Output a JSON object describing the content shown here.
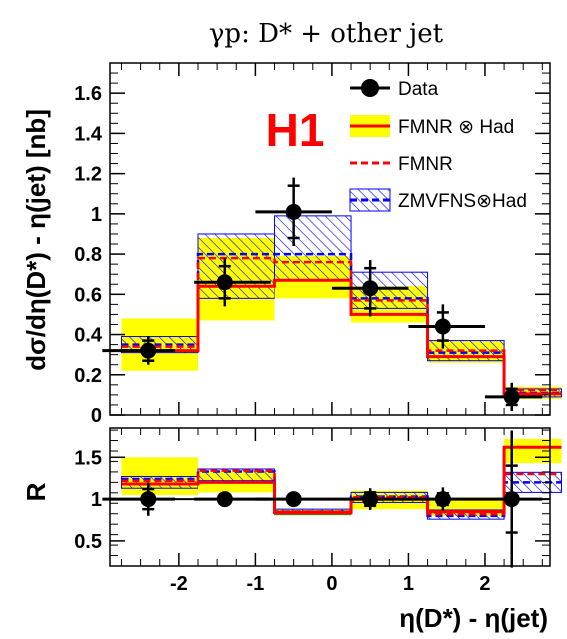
{
  "chart_data": {
    "type": "histogram",
    "title": "γp:  D* + other jet",
    "logo": "H1",
    "colors": {
      "data": "#000000",
      "band_fill": "#ffff00",
      "fmnr_had": "#ff0000",
      "fmnr": "#ff0000",
      "zmvfns": "#0000ff"
    },
    "bin_edges": [
      -2.75,
      -1.75,
      -0.75,
      0.25,
      1.25,
      2.25,
      3.0
    ],
    "xlabel": "η(D*) - η(jet)",
    "xlim": [
      -2.9,
      2.85
    ],
    "x_ticks": [
      -2,
      -1,
      0,
      1,
      2
    ],
    "x_tick_labels": [
      "-2",
      "-1",
      "0",
      "1",
      "2"
    ],
    "legend": {
      "placement": "top-right",
      "entries": [
        {
          "label": "Data",
          "style": "marker"
        },
        {
          "label": "FMNR ⊗ Had",
          "style": "band-line"
        },
        {
          "label": "FMNR",
          "style": "dashed-red"
        },
        {
          "label": "ZMVFNS⊗Had",
          "style": "hatched-dashed-blue"
        }
      ]
    },
    "top": {
      "ylabel": "dσ/dη(D*) - η(jet) [nb]",
      "ylim": [
        0,
        1.75
      ],
      "y_ticks": [
        0,
        0.2,
        0.4,
        0.6,
        0.8,
        1,
        1.2,
        1.4,
        1.6
      ],
      "y_tick_labels": [
        "0",
        "0.2",
        "0.4",
        "0.6",
        "0.8",
        "1",
        "1.2",
        "1.4",
        "1.6"
      ],
      "data": {
        "x": [
          -2.4,
          -1.4,
          -0.5,
          0.5,
          1.45,
          2.35
        ],
        "y": [
          0.32,
          0.66,
          1.01,
          0.63,
          0.44,
          0.09
        ],
        "xerr": [
          [
            0.6,
            0.35
          ],
          [
            0.4,
            0.6
          ],
          [
            0.5,
            0.5
          ],
          [
            0.5,
            0.5
          ],
          [
            0.45,
            0.55
          ],
          [
            0.35,
            0.4
          ]
        ],
        "yerr_inner": [
          0.05,
          0.08,
          0.13,
          0.1,
          0.07,
          0.04
        ],
        "yerr_outer": [
          0.07,
          0.12,
          0.17,
          0.14,
          0.11,
          0.07
        ]
      },
      "fmnr_had_band": {
        "low": [
          0.22,
          0.47,
          0.58,
          0.46,
          0.26,
          0.08
        ],
        "high": [
          0.48,
          0.88,
          0.79,
          0.64,
          0.37,
          0.14
        ]
      },
      "fmnr_had": [
        0.32,
        0.64,
        0.67,
        0.5,
        0.29,
        0.105
      ],
      "fmnr": [
        0.34,
        0.78,
        0.76,
        0.57,
        0.32,
        0.125
      ],
      "zmvfns_band": {
        "low": [
          0.31,
          0.58,
          0.67,
          0.53,
          0.27,
          0.09
        ],
        "high": [
          0.39,
          0.9,
          0.99,
          0.71,
          0.37,
          0.13
        ]
      },
      "zmvfns": [
        0.35,
        0.8,
        0.8,
        0.58,
        0.31,
        0.11
      ]
    },
    "bottom": {
      "ylabel": "R",
      "ylim": [
        0.2,
        1.85
      ],
      "y_ticks": [
        0.5,
        1,
        1.5
      ],
      "y_tick_labels": [
        "0.5",
        "1",
        "1.5"
      ],
      "reference_line": 1,
      "data": {
        "x": [
          -2.4,
          -1.4,
          -0.5,
          0.5,
          1.45,
          2.35
        ],
        "y": [
          1,
          1,
          1,
          1,
          1,
          1
        ],
        "xerr": [
          [
            0.6,
            0.35
          ],
          [
            0.4,
            0.6
          ],
          [
            0.5,
            0.5
          ],
          [
            0.5,
            0.5
          ],
          [
            0.45,
            0.55
          ],
          [
            0.35,
            0.4
          ]
        ],
        "yerr_inner": [
          0.12,
          0.05,
          0.02,
          0.08,
          0.07,
          0.4
        ],
        "yerr_outer": [
          0.2,
          0.07,
          0.04,
          0.13,
          0.14,
          0.82
        ]
      },
      "fmnr_had_band": {
        "low": [
          1.05,
          1.08,
          0.8,
          0.88,
          0.8,
          1.43
        ],
        "high": [
          1.5,
          1.33,
          0.88,
          1.1,
          1.02,
          1.72
        ]
      },
      "fmnr_had": [
        1.18,
        1.2,
        0.84,
        1.0,
        0.85,
        1.62
      ],
      "fmnr": [
        1.22,
        1.34,
        0.85,
        1.02,
        0.82,
        1.3
      ],
      "zmvfns_band": {
        "low": [
          1.13,
          1.22,
          0.82,
          0.96,
          0.76,
          1.08
        ],
        "high": [
          1.27,
          1.36,
          0.88,
          1.08,
          0.87,
          1.32
        ]
      },
      "zmvfns": [
        1.24,
        1.33,
        0.85,
        1.03,
        0.8,
        1.2
      ]
    }
  }
}
